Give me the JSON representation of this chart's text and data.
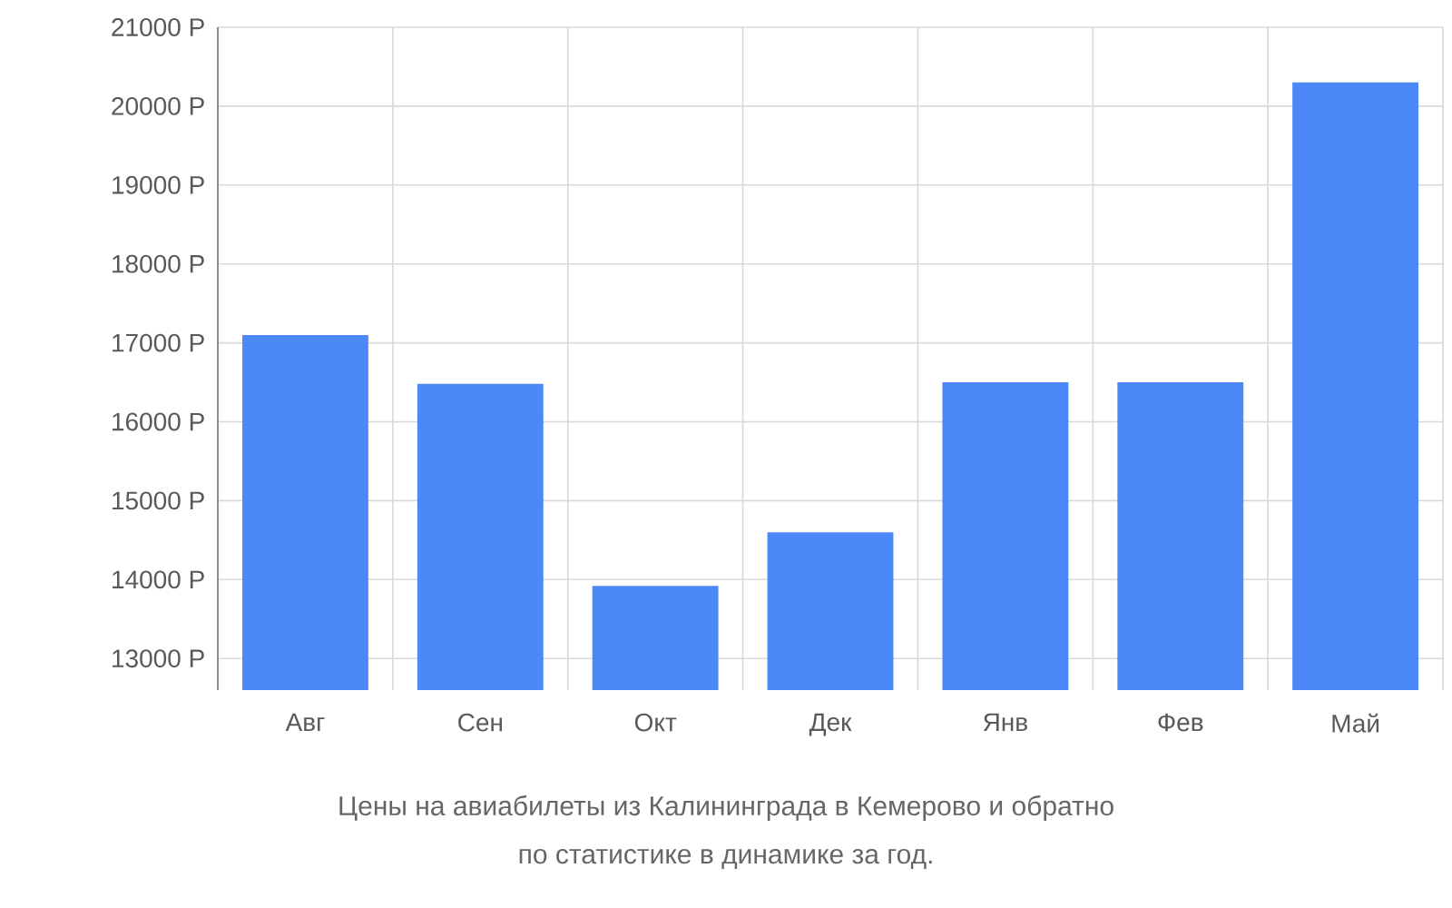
{
  "chart_data": {
    "type": "bar",
    "title": "Цены на авиабилеты из Калининграда в Кемерово и обратно",
    "subtitle": "по статистике в динамике за год.",
    "categories": [
      "Авг",
      "Сен",
      "Окт",
      "Дек",
      "Янв",
      "Фев",
      "Май"
    ],
    "values": [
      17100,
      16480,
      13920,
      14600,
      16500,
      16500,
      20300
    ],
    "color": "#4d88f9",
    "ylim": [
      12600,
      21000
    ],
    "yticks": [
      {
        "value": 13000,
        "label": "13000 Р"
      },
      {
        "value": 14000,
        "label": "14000 Р"
      },
      {
        "value": 15000,
        "label": "15000 Р"
      },
      {
        "value": 16000,
        "label": "16000 Р"
      },
      {
        "value": 17000,
        "label": "17000 Р"
      },
      {
        "value": 18000,
        "label": "18000 Р"
      },
      {
        "value": 19000,
        "label": "19000 Р"
      },
      {
        "value": 20000,
        "label": "20000 Р"
      },
      {
        "value": 21000,
        "label": "21000 Р"
      }
    ],
    "grid": true
  }
}
